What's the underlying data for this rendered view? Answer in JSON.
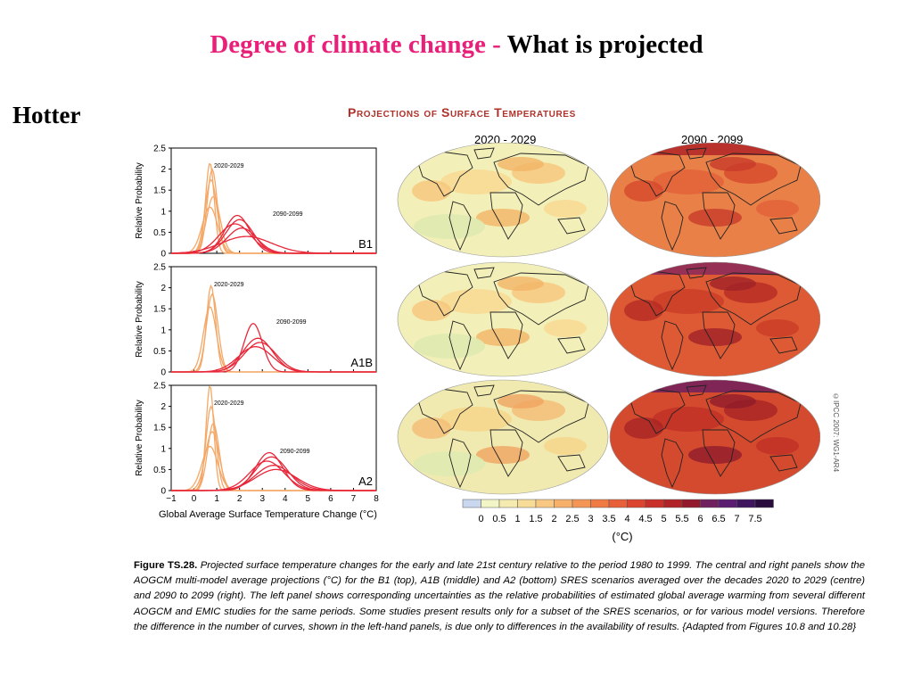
{
  "slide": {
    "title_part1": "Degree of climate change -",
    "title_part2": " What is projected",
    "side_label": "Hotter"
  },
  "figure": {
    "heading": "Projections of Surface Temperatures",
    "period_early": "2020 - 2029",
    "period_late": "2090 - 2099",
    "copyright": "©IPCC 2007: WG1-AR4",
    "colorbar": {
      "ticks": [
        "0",
        "0.5",
        "1",
        "1.5",
        "2",
        "2.5",
        "3",
        "3.5",
        "4",
        "4.5",
        "5",
        "5.5",
        "6",
        "6.5",
        "7",
        "7.5"
      ],
      "unit": "(°C)",
      "colors": [
        "#c9d8ee",
        "#f2f5c6",
        "#f5eab0",
        "#f7dc98",
        "#f8c882",
        "#f6b06a",
        "#f39555",
        "#ef7a44",
        "#e8603a",
        "#dc4630",
        "#c9302a",
        "#b02428",
        "#921a2c",
        "#70205e",
        "#5a1c70",
        "#3f1560",
        "#2a0d3e"
      ]
    },
    "caption": {
      "label": "Figure TS.28.",
      "text": " Projected surface temperature changes for the early and late 21st century relative to the period 1980 to 1999. The central and right panels show the AOGCM multi-model average projections (°C) for the B1 (top), A1B (middle) and A2 (bottom) SRES scenarios averaged over the decades 2020 to 2029 (centre) and 2090 to 2099 (right). The left panel shows corresponding uncertainties as the relative probabilities of estimated global average warming from several different AOGCM and EMIC studies for the same periods. Some studies present results only for a subset of the SRES scenarios, or for various model versions. Therefore the difference in the number of curves, shown in the left-hand panels, is due only to differences in the availability of results. {Adapted from Figures 10.8 and 10.28}"
    }
  },
  "chart_data": {
    "type": "line",
    "xlabel": "Global Average Surface Temperature Change (°C)",
    "ylabel": "Relative Probability",
    "xlim": [
      -1,
      8
    ],
    "ylim": [
      0,
      2.5
    ],
    "x_ticks": [
      "−1",
      "0",
      "1",
      "2",
      "3",
      "4",
      "5",
      "6",
      "7",
      "8"
    ],
    "y_ticks": [
      "0",
      "0.5",
      "1",
      "1.5",
      "2",
      "2.5"
    ],
    "colors": {
      "early": "#f4a868",
      "late": "#e8283a"
    },
    "panels": [
      {
        "scenario": "B1",
        "early_label": "2020-2029",
        "late_label": "2090-2099",
        "early_curves": [
          {
            "mu": 0.7,
            "sigma": 0.19,
            "peak": 2.15
          },
          {
            "mu": 0.8,
            "sigma": 0.22,
            "peak": 2.0
          },
          {
            "mu": 0.75,
            "sigma": 0.26,
            "peak": 1.75
          },
          {
            "mu": 0.85,
            "sigma": 0.3,
            "peak": 1.35
          },
          {
            "mu": 0.7,
            "sigma": 0.34,
            "peak": 1.1
          }
        ],
        "late_curves": [
          {
            "mu": 1.9,
            "sigma": 0.55,
            "peak": 0.9
          },
          {
            "mu": 2.0,
            "sigma": 0.6,
            "peak": 0.8
          },
          {
            "mu": 1.8,
            "sigma": 0.7,
            "peak": 0.7
          },
          {
            "mu": 2.1,
            "sigma": 0.65,
            "peak": 0.6
          },
          {
            "mu": 2.3,
            "sigma": 1.1,
            "peak": 0.4
          }
        ]
      },
      {
        "scenario": "A1B",
        "early_label": "2020-2029",
        "late_label": "2090-2099",
        "early_curves": [
          {
            "mu": 0.75,
            "sigma": 0.2,
            "peak": 2.05
          },
          {
            "mu": 0.8,
            "sigma": 0.25,
            "peak": 1.85
          },
          {
            "mu": 0.7,
            "sigma": 0.28,
            "peak": 1.55
          }
        ],
        "late_curves": [
          {
            "mu": 2.6,
            "sigma": 0.4,
            "peak": 1.15
          },
          {
            "mu": 2.8,
            "sigma": 0.65,
            "peak": 0.8
          },
          {
            "mu": 2.9,
            "sigma": 0.7,
            "peak": 0.7
          },
          {
            "mu": 2.7,
            "sigma": 0.75,
            "peak": 0.6
          }
        ]
      },
      {
        "scenario": "A2",
        "early_label": "2020-2029",
        "late_label": "2090-2099",
        "early_curves": [
          {
            "mu": 0.7,
            "sigma": 0.17,
            "peak": 2.5
          },
          {
            "mu": 0.75,
            "sigma": 0.22,
            "peak": 2.0
          },
          {
            "mu": 0.85,
            "sigma": 0.25,
            "peak": 1.6
          },
          {
            "mu": 0.8,
            "sigma": 0.3,
            "peak": 1.4
          },
          {
            "mu": 0.7,
            "sigma": 0.35,
            "peak": 1.05
          }
        ],
        "late_curves": [
          {
            "mu": 3.3,
            "sigma": 0.6,
            "peak": 0.9
          },
          {
            "mu": 3.4,
            "sigma": 0.7,
            "peak": 0.8
          },
          {
            "mu": 3.2,
            "sigma": 0.75,
            "peak": 0.7
          },
          {
            "mu": 3.5,
            "sigma": 0.8,
            "peak": 0.6
          },
          {
            "mu": 3.6,
            "sigma": 0.9,
            "peak": 0.5
          }
        ]
      }
    ]
  }
}
